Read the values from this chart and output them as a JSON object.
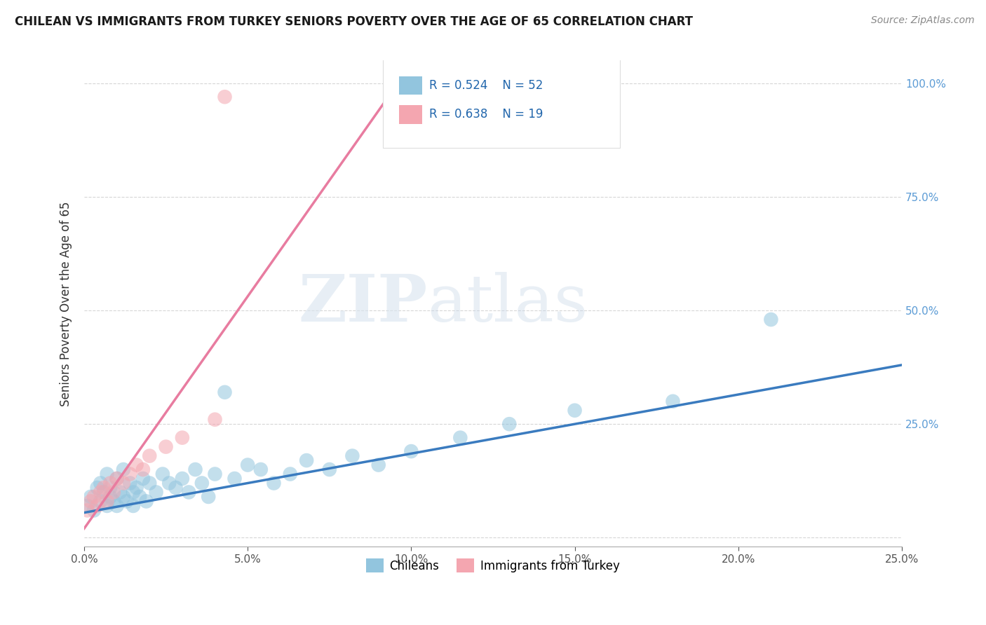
{
  "title": "CHILEAN VS IMMIGRANTS FROM TURKEY SENIORS POVERTY OVER THE AGE OF 65 CORRELATION CHART",
  "source": "Source: ZipAtlas.com",
  "ylabel": "Seniors Poverty Over the Age of 65",
  "xlim": [
    0.0,
    0.25
  ],
  "ylim": [
    -0.02,
    1.05
  ],
  "watermark_zip": "ZIP",
  "watermark_atlas": "atlas",
  "legend_chileans": "Chileans",
  "legend_turkey": "Immigrants from Turkey",
  "R_chileans": 0.524,
  "N_chileans": 52,
  "R_turkey": 0.638,
  "N_turkey": 19,
  "color_chileans": "#92c5de",
  "color_turkey": "#f4a6b0",
  "line_color_chileans": "#3a7bbf",
  "line_color_turkey": "#e87ca0",
  "chileans_x": [
    0.001,
    0.002,
    0.003,
    0.004,
    0.005,
    0.005,
    0.006,
    0.007,
    0.007,
    0.008,
    0.008,
    0.009,
    0.01,
    0.01,
    0.011,
    0.012,
    0.012,
    0.013,
    0.014,
    0.015,
    0.015,
    0.016,
    0.017,
    0.018,
    0.019,
    0.02,
    0.022,
    0.024,
    0.026,
    0.028,
    0.03,
    0.032,
    0.034,
    0.036,
    0.038,
    0.04,
    0.043,
    0.046,
    0.05,
    0.054,
    0.058,
    0.063,
    0.068,
    0.075,
    0.082,
    0.09,
    0.1,
    0.115,
    0.13,
    0.15,
    0.18,
    0.21
  ],
  "chileans_y": [
    0.07,
    0.09,
    0.06,
    0.11,
    0.08,
    0.12,
    0.1,
    0.07,
    0.14,
    0.09,
    0.11,
    0.08,
    0.13,
    0.07,
    0.1,
    0.09,
    0.15,
    0.08,
    0.12,
    0.1,
    0.07,
    0.11,
    0.09,
    0.13,
    0.08,
    0.12,
    0.1,
    0.14,
    0.12,
    0.11,
    0.13,
    0.1,
    0.15,
    0.12,
    0.09,
    0.14,
    0.32,
    0.13,
    0.16,
    0.15,
    0.12,
    0.14,
    0.17,
    0.15,
    0.18,
    0.16,
    0.19,
    0.22,
    0.25,
    0.28,
    0.3,
    0.48
  ],
  "turkey_x": [
    0.001,
    0.002,
    0.003,
    0.004,
    0.005,
    0.006,
    0.007,
    0.008,
    0.009,
    0.01,
    0.012,
    0.014,
    0.016,
    0.018,
    0.02,
    0.025,
    0.03,
    0.04,
    0.043
  ],
  "turkey_y": [
    0.06,
    0.08,
    0.09,
    0.07,
    0.1,
    0.11,
    0.08,
    0.12,
    0.1,
    0.13,
    0.12,
    0.14,
    0.16,
    0.15,
    0.18,
    0.2,
    0.22,
    0.26,
    0.97
  ],
  "grid_color": "#cccccc",
  "background_color": "#ffffff",
  "chile_line_x": [
    0.0,
    0.25
  ],
  "chile_line_y": [
    0.055,
    0.38
  ],
  "turkey_line_x": [
    0.0,
    0.092
  ],
  "turkey_line_y": [
    0.02,
    0.96
  ]
}
